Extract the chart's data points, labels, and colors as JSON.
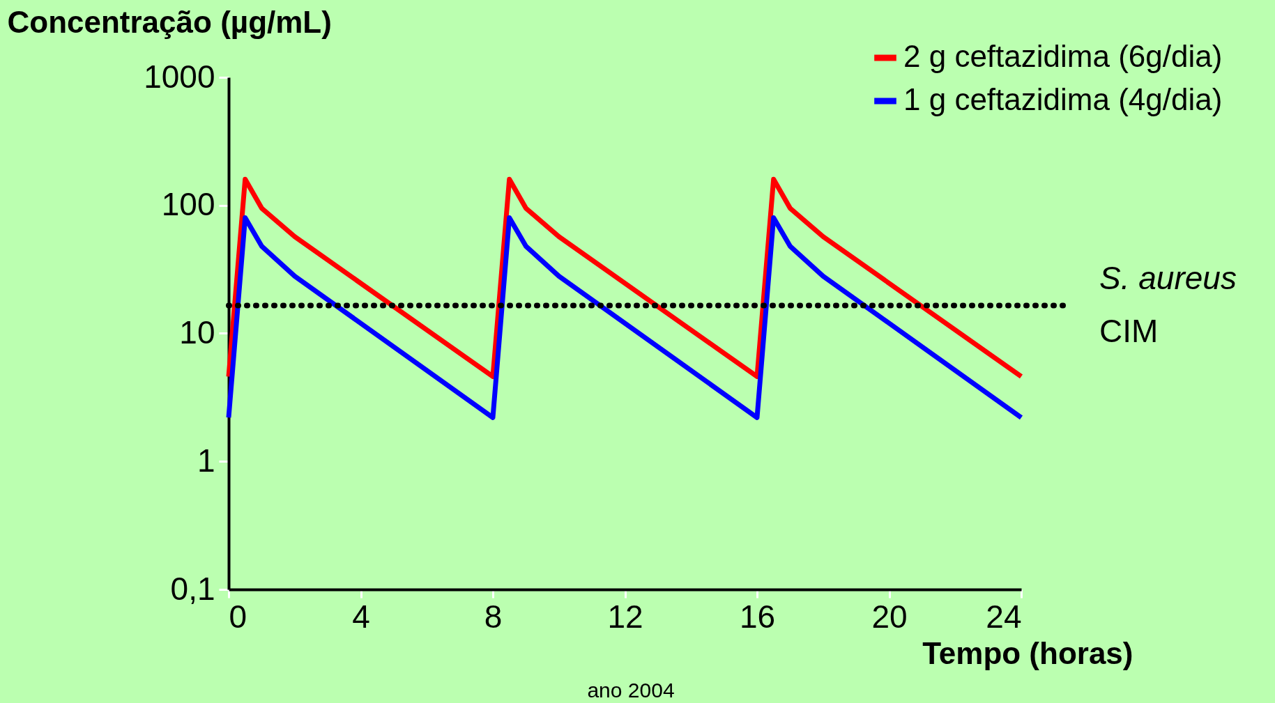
{
  "chart_data": {
    "type": "line",
    "xlabel": "Tempo (horas)",
    "ylabel": "Concentração (µg/mL)",
    "x": [
      0,
      0.5,
      1,
      2,
      8,
      8.5,
      9,
      10,
      16,
      16.5,
      17,
      18,
      24
    ],
    "series": [
      {
        "name": "2 g ceftazidima (6g/dia)",
        "color": "#ff0000",
        "values": [
          4.6,
          160,
          95,
          57,
          4.6,
          160,
          95,
          57,
          4.6,
          160,
          95,
          57,
          4.6
        ]
      },
      {
        "name": "1 g ceftazidima (4g/dia)",
        "color": "#0000ff",
        "values": [
          2.2,
          80,
          48,
          28,
          2.2,
          80,
          48,
          28,
          2.2,
          80,
          48,
          28,
          2.2
        ]
      }
    ],
    "log": "y",
    "xlim": [
      0,
      24
    ],
    "xticks": [
      0,
      4,
      8,
      12,
      16,
      20,
      24
    ],
    "ylim": [
      0.1,
      1000
    ],
    "yticks": [
      {
        "value": 0.1,
        "label": "0,1"
      },
      1,
      10,
      100,
      1000
    ],
    "ref_lines": [
      {
        "axis": "y",
        "value": 16.5,
        "label": "S. aureus\nCIM",
        "color": "#000000",
        "line_style": "dotted"
      }
    ],
    "annotations": [
      "ano 2004"
    ],
    "legend": "top right",
    "grid": false,
    "marker": "none",
    "line_style": "solid"
  }
}
